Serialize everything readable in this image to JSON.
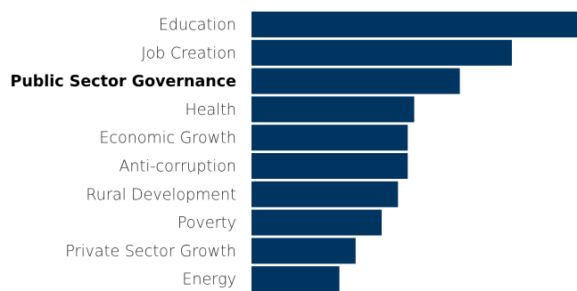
{
  "chart_data": {
    "type": "bar",
    "orientation": "horizontal",
    "categories": [
      "Education",
      "Job Creation",
      "Public Sector Governance",
      "Health",
      "Economic Growth",
      "Anti-corruption",
      "Rural Development",
      "Poverty",
      "Private Sector Growth",
      "Energy"
    ],
    "values": [
      100,
      80,
      64,
      50,
      48,
      48,
      45,
      40,
      32,
      27
    ],
    "highlighted_category": "Public Sector Governance",
    "bar_color": "#003461",
    "title": "",
    "xlabel": "",
    "ylabel": "",
    "xlim": [
      0,
      100
    ],
    "grid": false,
    "axis_visible": false,
    "legend": "none"
  }
}
